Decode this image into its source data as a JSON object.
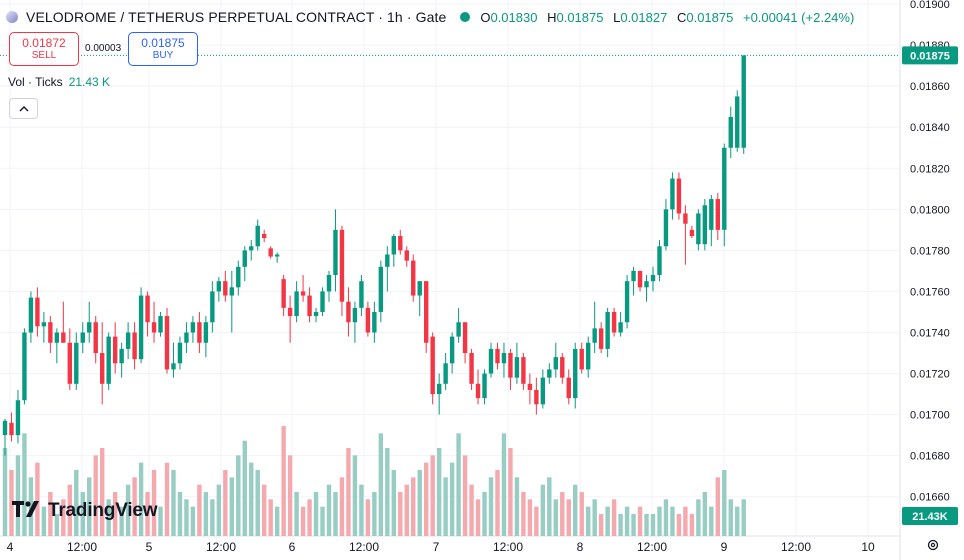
{
  "header": {
    "symbol": "VELODROME / TETHERUS PERPETUAL CONTRACT",
    "sep1": "·",
    "interval": "1h",
    "sep2": "·",
    "exchange": "Gate",
    "o_label": "O",
    "o_value": "0.01830",
    "h_label": "H",
    "h_value": "0.01875",
    "l_label": "L",
    "l_value": "0.01827",
    "c_label": "C",
    "c_value": "0.01875",
    "change": "+0.00041 (+2.24%)",
    "symbol_icon": "velodrome-coin-icon",
    "market_status_icon": "market-open-dot-icon"
  },
  "trade": {
    "sell_price": "0.01872",
    "sell_label": "SELL",
    "spread": "0.00003",
    "buy_price": "0.01875",
    "buy_label": "BUY"
  },
  "volume_legend": {
    "label": "Vol · Ticks",
    "value": "21.43 K",
    "collapse_icon": "chevron-up-icon"
  },
  "branding": {
    "logo_text": "TradingView",
    "logo_icon": "tradingview-logo-icon"
  },
  "settings_icon": "gear-icon",
  "colors": {
    "up": "#089981",
    "down": "#f23645",
    "vol_up": "#97cdc3",
    "vol_down": "#f4a9ae",
    "price_label": "#089981",
    "grid": "#f0f3fa"
  },
  "chart_data": {
    "type": "candlestick",
    "price_axis": {
      "ticks": [
        "0.01900",
        "0.01880",
        "0.01860",
        "0.01840",
        "0.01820",
        "0.01800",
        "0.01780",
        "0.01760",
        "0.01740",
        "0.01720",
        "0.01700",
        "0.01680",
        "0.01660"
      ],
      "range": [
        0.016545,
        0.01901
      ]
    },
    "current_price_label": "0.01875",
    "volume_label": "21.43K",
    "time_axis": {
      "ticks": [
        "4",
        "12:00",
        "5",
        "12:00",
        "6",
        "12:00",
        "7",
        "12:00",
        "8",
        "12:00",
        "9",
        "12:00",
        "10"
      ]
    },
    "grid": true,
    "candles": [
      {
        "o": 0.0169,
        "h": 0.01698,
        "l": 0.0168,
        "c": 0.01697,
        "v": 12
      },
      {
        "o": 0.01696,
        "h": 0.01701,
        "l": 0.01687,
        "c": 0.0169,
        "v": 9
      },
      {
        "o": 0.0169,
        "h": 0.01712,
        "l": 0.01686,
        "c": 0.01707,
        "v": 11
      },
      {
        "o": 0.01707,
        "h": 0.01742,
        "l": 0.01705,
        "c": 0.0174,
        "v": 14
      },
      {
        "o": 0.0174,
        "h": 0.0176,
        "l": 0.01735,
        "c": 0.01757,
        "v": 8
      },
      {
        "o": 0.01757,
        "h": 0.01762,
        "l": 0.01738,
        "c": 0.01743,
        "v": 10
      },
      {
        "o": 0.01743,
        "h": 0.0175,
        "l": 0.01735,
        "c": 0.01745,
        "v": 4
      },
      {
        "o": 0.01745,
        "h": 0.01748,
        "l": 0.0173,
        "c": 0.01735,
        "v": 6
      },
      {
        "o": 0.01735,
        "h": 0.01742,
        "l": 0.01725,
        "c": 0.0174,
        "v": 3
      },
      {
        "o": 0.0174,
        "h": 0.01755,
        "l": 0.01735,
        "c": 0.01735,
        "v": 5
      },
      {
        "o": 0.01735,
        "h": 0.01742,
        "l": 0.01712,
        "c": 0.01715,
        "v": 7
      },
      {
        "o": 0.01715,
        "h": 0.0174,
        "l": 0.01712,
        "c": 0.01735,
        "v": 9
      },
      {
        "o": 0.01735,
        "h": 0.01745,
        "l": 0.0173,
        "c": 0.0174,
        "v": 6
      },
      {
        "o": 0.0174,
        "h": 0.01755,
        "l": 0.01735,
        "c": 0.01745,
        "v": 8
      },
      {
        "o": 0.01745,
        "h": 0.01748,
        "l": 0.01725,
        "c": 0.0173,
        "v": 11
      },
      {
        "o": 0.0173,
        "h": 0.01745,
        "l": 0.01705,
        "c": 0.01715,
        "v": 12
      },
      {
        "o": 0.01715,
        "h": 0.0174,
        "l": 0.01712,
        "c": 0.01738,
        "v": 5
      },
      {
        "o": 0.01738,
        "h": 0.01745,
        "l": 0.0172,
        "c": 0.01725,
        "v": 6
      },
      {
        "o": 0.01725,
        "h": 0.01735,
        "l": 0.01718,
        "c": 0.01732,
        "v": 4
      },
      {
        "o": 0.01732,
        "h": 0.01745,
        "l": 0.01727,
        "c": 0.0174,
        "v": 7
      },
      {
        "o": 0.0174,
        "h": 0.01745,
        "l": 0.01722,
        "c": 0.01727,
        "v": 8
      },
      {
        "o": 0.01727,
        "h": 0.01762,
        "l": 0.01725,
        "c": 0.01758,
        "v": 10
      },
      {
        "o": 0.01758,
        "h": 0.0176,
        "l": 0.01738,
        "c": 0.01745,
        "v": 6
      },
      {
        "o": 0.01745,
        "h": 0.01755,
        "l": 0.01735,
        "c": 0.0174,
        "v": 9
      },
      {
        "o": 0.0174,
        "h": 0.0175,
        "l": 0.01738,
        "c": 0.01748,
        "v": 4
      },
      {
        "o": 0.01748,
        "h": 0.01752,
        "l": 0.0172,
        "c": 0.01722,
        "v": 10
      },
      {
        "o": 0.01722,
        "h": 0.01735,
        "l": 0.01718,
        "c": 0.01725,
        "v": 9
      },
      {
        "o": 0.01725,
        "h": 0.01738,
        "l": 0.01722,
        "c": 0.01735,
        "v": 6
      },
      {
        "o": 0.01735,
        "h": 0.01745,
        "l": 0.0173,
        "c": 0.0174,
        "v": 5
      },
      {
        "o": 0.0174,
        "h": 0.01748,
        "l": 0.01735,
        "c": 0.01745,
        "v": 4
      },
      {
        "o": 0.01745,
        "h": 0.0175,
        "l": 0.0173,
        "c": 0.01735,
        "v": 7
      },
      {
        "o": 0.01735,
        "h": 0.01748,
        "l": 0.01728,
        "c": 0.01745,
        "v": 6
      },
      {
        "o": 0.01745,
        "h": 0.01765,
        "l": 0.0174,
        "c": 0.0176,
        "v": 5
      },
      {
        "o": 0.0176,
        "h": 0.01767,
        "l": 0.01755,
        "c": 0.01765,
        "v": 7
      },
      {
        "o": 0.01765,
        "h": 0.0177,
        "l": 0.01755,
        "c": 0.01758,
        "v": 9
      },
      {
        "o": 0.01758,
        "h": 0.0177,
        "l": 0.0174,
        "c": 0.01762,
        "v": 8
      },
      {
        "o": 0.01762,
        "h": 0.01775,
        "l": 0.01758,
        "c": 0.01772,
        "v": 11
      },
      {
        "o": 0.01772,
        "h": 0.01782,
        "l": 0.01765,
        "c": 0.0178,
        "v": 13
      },
      {
        "o": 0.0178,
        "h": 0.01785,
        "l": 0.01775,
        "c": 0.01782,
        "v": 10
      },
      {
        "o": 0.01782,
        "h": 0.01795,
        "l": 0.0178,
        "c": 0.01792,
        "v": 9
      },
      {
        "o": 0.01788,
        "h": 0.0179,
        "l": 0.01784,
        "c": 0.01786,
        "v": 7
      },
      {
        "o": 0.01781,
        "h": 0.01782,
        "l": 0.01776,
        "c": 0.01777,
        "v": 5
      },
      {
        "o": 0.01777,
        "h": 0.01779,
        "l": 0.01774,
        "c": 0.01778,
        "v": 4
      },
      {
        "o": 0.01766,
        "h": 0.01768,
        "l": 0.01748,
        "c": 0.01752,
        "v": 15
      },
      {
        "o": 0.01752,
        "h": 0.01758,
        "l": 0.01735,
        "c": 0.01748,
        "v": 11
      },
      {
        "o": 0.01748,
        "h": 0.01765,
        "l": 0.01745,
        "c": 0.0176,
        "v": 6
      },
      {
        "o": 0.0176,
        "h": 0.01768,
        "l": 0.01755,
        "c": 0.01758,
        "v": 4
      },
      {
        "o": 0.01758,
        "h": 0.01762,
        "l": 0.01745,
        "c": 0.01748,
        "v": 5
      },
      {
        "o": 0.01748,
        "h": 0.01752,
        "l": 0.01745,
        "c": 0.0175,
        "v": 6
      },
      {
        "o": 0.0175,
        "h": 0.01762,
        "l": 0.01748,
        "c": 0.0176,
        "v": 4
      },
      {
        "o": 0.0176,
        "h": 0.0177,
        "l": 0.01755,
        "c": 0.01768,
        "v": 7
      },
      {
        "o": 0.01768,
        "h": 0.018,
        "l": 0.0176,
        "c": 0.0179,
        "v": 6
      },
      {
        "o": 0.0179,
        "h": 0.01792,
        "l": 0.01748,
        "c": 0.01755,
        "v": 8
      },
      {
        "o": 0.01755,
        "h": 0.01762,
        "l": 0.01738,
        "c": 0.01745,
        "v": 12
      },
      {
        "o": 0.01745,
        "h": 0.01755,
        "l": 0.01735,
        "c": 0.01752,
        "v": 11
      },
      {
        "o": 0.01752,
        "h": 0.01768,
        "l": 0.01748,
        "c": 0.01765,
        "v": 7
      },
      {
        "o": 0.01752,
        "h": 0.01755,
        "l": 0.01738,
        "c": 0.0174,
        "v": 5
      },
      {
        "o": 0.0174,
        "h": 0.01755,
        "l": 0.01735,
        "c": 0.0175,
        "v": 6
      },
      {
        "o": 0.0175,
        "h": 0.01775,
        "l": 0.01745,
        "c": 0.01772,
        "v": 14
      },
      {
        "o": 0.01772,
        "h": 0.01782,
        "l": 0.0176,
        "c": 0.01778,
        "v": 12
      },
      {
        "o": 0.01778,
        "h": 0.01788,
        "l": 0.01772,
        "c": 0.01787,
        "v": 9
      },
      {
        "o": 0.01787,
        "h": 0.0179,
        "l": 0.01778,
        "c": 0.0178,
        "v": 6
      },
      {
        "o": 0.0178,
        "h": 0.01782,
        "l": 0.01772,
        "c": 0.01775,
        "v": 7
      },
      {
        "o": 0.01775,
        "h": 0.01778,
        "l": 0.01755,
        "c": 0.01758,
        "v": 8
      },
      {
        "o": 0.01758,
        "h": 0.01765,
        "l": 0.01748,
        "c": 0.01765,
        "v": 9
      },
      {
        "o": 0.01765,
        "h": 0.01765,
        "l": 0.0173,
        "c": 0.01735,
        "v": 10
      },
      {
        "o": 0.01738,
        "h": 0.0174,
        "l": 0.01705,
        "c": 0.0171,
        "v": 11
      },
      {
        "o": 0.0171,
        "h": 0.0172,
        "l": 0.017,
        "c": 0.01715,
        "v": 12
      },
      {
        "o": 0.01715,
        "h": 0.0173,
        "l": 0.01712,
        "c": 0.01725,
        "v": 8
      },
      {
        "o": 0.01725,
        "h": 0.0174,
        "l": 0.0172,
        "c": 0.01738,
        "v": 10
      },
      {
        "o": 0.01738,
        "h": 0.01752,
        "l": 0.01735,
        "c": 0.01745,
        "v": 14
      },
      {
        "o": 0.01745,
        "h": 0.01745,
        "l": 0.01725,
        "c": 0.0173,
        "v": 11
      },
      {
        "o": 0.0173,
        "h": 0.01732,
        "l": 0.01712,
        "c": 0.01715,
        "v": 7
      },
      {
        "o": 0.01715,
        "h": 0.01722,
        "l": 0.01705,
        "c": 0.01708,
        "v": 5
      },
      {
        "o": 0.01708,
        "h": 0.01722,
        "l": 0.01705,
        "c": 0.0172,
        "v": 6
      },
      {
        "o": 0.0172,
        "h": 0.01735,
        "l": 0.01718,
        "c": 0.01732,
        "v": 8
      },
      {
        "o": 0.01732,
        "h": 0.01735,
        "l": 0.01722,
        "c": 0.01725,
        "v": 9
      },
      {
        "o": 0.01725,
        "h": 0.01735,
        "l": 0.01718,
        "c": 0.0173,
        "v": 14
      },
      {
        "o": 0.0173,
        "h": 0.01732,
        "l": 0.01712,
        "c": 0.01718,
        "v": 12
      },
      {
        "o": 0.01718,
        "h": 0.01735,
        "l": 0.01715,
        "c": 0.01728,
        "v": 8
      },
      {
        "o": 0.01728,
        "h": 0.0173,
        "l": 0.01712,
        "c": 0.01715,
        "v": 6
      },
      {
        "o": 0.01715,
        "h": 0.0172,
        "l": 0.01705,
        "c": 0.01712,
        "v": 5
      },
      {
        "o": 0.01712,
        "h": 0.01718,
        "l": 0.017,
        "c": 0.01705,
        "v": 4
      },
      {
        "o": 0.01705,
        "h": 0.01722,
        "l": 0.01703,
        "c": 0.01718,
        "v": 7
      },
      {
        "o": 0.01718,
        "h": 0.01725,
        "l": 0.01715,
        "c": 0.01722,
        "v": 8
      },
      {
        "o": 0.01722,
        "h": 0.01735,
        "l": 0.01718,
        "c": 0.01728,
        "v": 5
      },
      {
        "o": 0.01728,
        "h": 0.0173,
        "l": 0.01715,
        "c": 0.01718,
        "v": 6
      },
      {
        "o": 0.01718,
        "h": 0.01722,
        "l": 0.01705,
        "c": 0.01708,
        "v": 5
      },
      {
        "o": 0.01708,
        "h": 0.01735,
        "l": 0.01703,
        "c": 0.01732,
        "v": 7
      },
      {
        "o": 0.01732,
        "h": 0.01735,
        "l": 0.0172,
        "c": 0.01722,
        "v": 6
      },
      {
        "o": 0.01722,
        "h": 0.01738,
        "l": 0.01718,
        "c": 0.01735,
        "v": 4
      },
      {
        "o": 0.01735,
        "h": 0.01755,
        "l": 0.0173,
        "c": 0.01742,
        "v": 5
      },
      {
        "o": 0.01742,
        "h": 0.01745,
        "l": 0.0173,
        "c": 0.01732,
        "v": 3
      },
      {
        "o": 0.01732,
        "h": 0.01752,
        "l": 0.01728,
        "c": 0.0175,
        "v": 4
      },
      {
        "o": 0.0175,
        "h": 0.01752,
        "l": 0.01738,
        "c": 0.0174,
        "v": 5
      },
      {
        "o": 0.0174,
        "h": 0.0175,
        "l": 0.01738,
        "c": 0.01745,
        "v": 3
      },
      {
        "o": 0.01745,
        "h": 0.01768,
        "l": 0.01742,
        "c": 0.01765,
        "v": 4
      },
      {
        "o": 0.01765,
        "h": 0.01772,
        "l": 0.01758,
        "c": 0.0177,
        "v": 3
      },
      {
        "o": 0.0177,
        "h": 0.0177,
        "l": 0.0176,
        "c": 0.01762,
        "v": 4
      },
      {
        "o": 0.01762,
        "h": 0.01768,
        "l": 0.01755,
        "c": 0.01765,
        "v": 3
      },
      {
        "o": 0.01765,
        "h": 0.01772,
        "l": 0.0176,
        "c": 0.01768,
        "v": 3
      },
      {
        "o": 0.01768,
        "h": 0.01785,
        "l": 0.01765,
        "c": 0.01782,
        "v": 4
      },
      {
        "o": 0.01782,
        "h": 0.01805,
        "l": 0.0178,
        "c": 0.018,
        "v": 5
      },
      {
        "o": 0.018,
        "h": 0.01818,
        "l": 0.01795,
        "c": 0.01815,
        "v": 4
      },
      {
        "o": 0.01815,
        "h": 0.01818,
        "l": 0.01795,
        "c": 0.01798,
        "v": 3
      },
      {
        "o": 0.01798,
        "h": 0.01802,
        "l": 0.01773,
        "c": 0.01793,
        "v": 4
      },
      {
        "o": 0.0179,
        "h": 0.01792,
        "l": 0.01786,
        "c": 0.01787,
        "v": 3
      },
      {
        "o": 0.01783,
        "h": 0.018,
        "l": 0.0178,
        "c": 0.01798,
        "v": 5
      },
      {
        "o": 0.01783,
        "h": 0.01805,
        "l": 0.0178,
        "c": 0.01802,
        "v": 6
      },
      {
        "o": 0.0179,
        "h": 0.01807,
        "l": 0.01782,
        "c": 0.01805,
        "v": 4
      },
      {
        "o": 0.01805,
        "h": 0.01808,
        "l": 0.01785,
        "c": 0.0179,
        "v": 8
      },
      {
        "o": 0.0179,
        "h": 0.01832,
        "l": 0.01782,
        "c": 0.0183,
        "v": 9
      },
      {
        "o": 0.0183,
        "h": 0.0185,
        "l": 0.01825,
        "c": 0.01845,
        "v": 5
      },
      {
        "o": 0.0183,
        "h": 0.01858,
        "l": 0.01828,
        "c": 0.01855,
        "v": 4
      },
      {
        "o": 0.0183,
        "h": 0.01875,
        "l": 0.01827,
        "c": 0.01875,
        "v": 5
      }
    ]
  }
}
